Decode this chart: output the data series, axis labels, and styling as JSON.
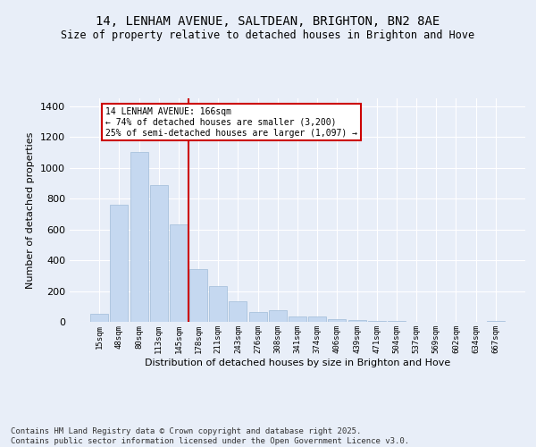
{
  "title": "14, LENHAM AVENUE, SALTDEAN, BRIGHTON, BN2 8AE",
  "subtitle": "Size of property relative to detached houses in Brighton and Hove",
  "xlabel": "Distribution of detached houses by size in Brighton and Hove",
  "ylabel": "Number of detached properties",
  "categories": [
    "15sqm",
    "48sqm",
    "80sqm",
    "113sqm",
    "145sqm",
    "178sqm",
    "211sqm",
    "243sqm",
    "276sqm",
    "308sqm",
    "341sqm",
    "374sqm",
    "406sqm",
    "439sqm",
    "471sqm",
    "504sqm",
    "537sqm",
    "569sqm",
    "602sqm",
    "634sqm",
    "667sqm"
  ],
  "values": [
    55,
    760,
    1100,
    890,
    630,
    345,
    230,
    135,
    65,
    75,
    35,
    35,
    20,
    12,
    7,
    3,
    1,
    0,
    0,
    0,
    8
  ],
  "bar_color": "#c5d8f0",
  "bar_edgecolor": "#a0bcd8",
  "vline_x": 4.5,
  "vline_color": "#cc0000",
  "annotation_text": "14 LENHAM AVENUE: 166sqm\n← 74% of detached houses are smaller (3,200)\n25% of semi-detached houses are larger (1,097) →",
  "annotation_box_color": "#cc0000",
  "ylim": [
    0,
    1450
  ],
  "background_color": "#e8eef8",
  "plot_background": "#e8eef8",
  "footer": "Contains HM Land Registry data © Crown copyright and database right 2025.\nContains public sector information licensed under the Open Government Licence v3.0.",
  "title_fontsize": 10,
  "subtitle_fontsize": 8.5,
  "annotation_fontsize": 7,
  "footer_fontsize": 6.5,
  "ylabel_fontsize": 8,
  "xlabel_fontsize": 8
}
